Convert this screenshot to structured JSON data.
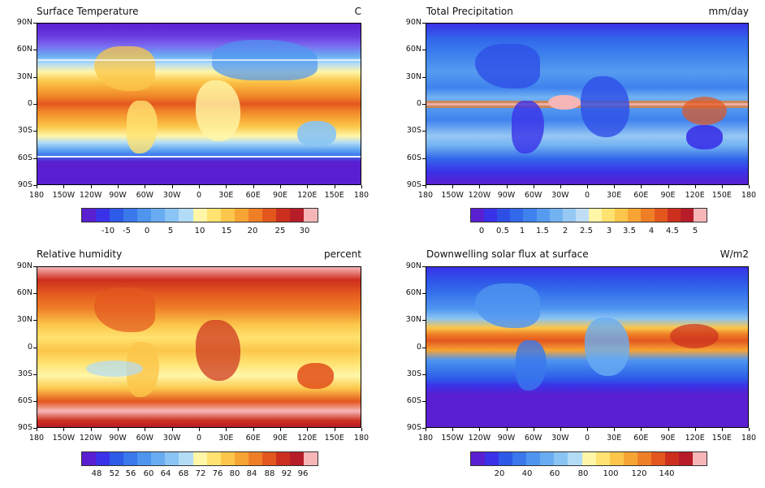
{
  "axes": {
    "ylabels": [
      "90N",
      "60N",
      "30N",
      "0",
      "30S",
      "60S",
      "90S"
    ],
    "xlabels": [
      "180",
      "150W",
      "120W",
      "90W",
      "60W",
      "30W",
      "0",
      "30E",
      "60E",
      "90E",
      "120E",
      "150E",
      "180"
    ]
  },
  "panels": [
    {
      "id": "surface-temperature",
      "title": "Surface Temperature",
      "units": "C",
      "colorbar": {
        "colors": [
          "#5a1fd0",
          "#3a32e8",
          "#2e5ae8",
          "#3a78ec",
          "#4f95f0",
          "#69acf2",
          "#8ac4f4",
          "#b2dcf6",
          "#fff6a8",
          "#ffe270",
          "#fbc64a",
          "#f6a434",
          "#ef7f27",
          "#e3571f",
          "#cc2f1e",
          "#b71d28",
          "#f6b6b8"
        ],
        "labels": [
          "-10",
          "-5",
          "0",
          "5",
          "10",
          "15",
          "20",
          "25",
          "30"
        ]
      }
    },
    {
      "id": "total-precipitation",
      "title": "Total Precipitation",
      "units": "mm/day",
      "colorbar": {
        "colors": [
          "#5a1fd0",
          "#3a32e8",
          "#2e4fe6",
          "#3268ea",
          "#3f82ee",
          "#569bf0",
          "#72b2f2",
          "#96c8f4",
          "#bfdef6",
          "#fff6a8",
          "#ffe270",
          "#fbc64a",
          "#f6a434",
          "#ef7f27",
          "#e3571f",
          "#cc2f1e",
          "#b71d28",
          "#f6b6b8"
        ],
        "labels": [
          "0",
          "0.5",
          "1",
          "1.5",
          "2",
          "2.5",
          "3",
          "3.5",
          "4",
          "4.5",
          "5"
        ]
      }
    },
    {
      "id": "relative-humidity",
      "title": "Relative humidity",
      "units": "percent",
      "colorbar": {
        "colors": [
          "#5a1fd0",
          "#3a32e8",
          "#2e5ae8",
          "#3a78ec",
          "#4f95f0",
          "#69acf2",
          "#8ac4f4",
          "#b2dcf6",
          "#fff6a8",
          "#ffe270",
          "#fbc64a",
          "#f6a434",
          "#ef7f27",
          "#e3571f",
          "#cc2f1e",
          "#b71d28",
          "#f6b6b8"
        ],
        "labels": [
          "48",
          "52",
          "56",
          "60",
          "64",
          "68",
          "72",
          "76",
          "80",
          "84",
          "88",
          "92",
          "96"
        ]
      }
    },
    {
      "id": "downwelling-solar-flux",
      "title": "Downwelling solar flux at surface",
      "units": "W/m2",
      "colorbar": {
        "colors": [
          "#5a1fd0",
          "#3a32e8",
          "#2e5ae8",
          "#3a78ec",
          "#4f95f0",
          "#69acf2",
          "#8ac4f4",
          "#b2dcf6",
          "#fff6a8",
          "#ffe270",
          "#fbc64a",
          "#f6a434",
          "#ef7f27",
          "#e3571f",
          "#cc2f1e",
          "#b71d28",
          "#f6b6b8"
        ],
        "labels": [
          "20",
          "40",
          "60",
          "80",
          "100",
          "120",
          "140"
        ]
      }
    }
  ]
}
